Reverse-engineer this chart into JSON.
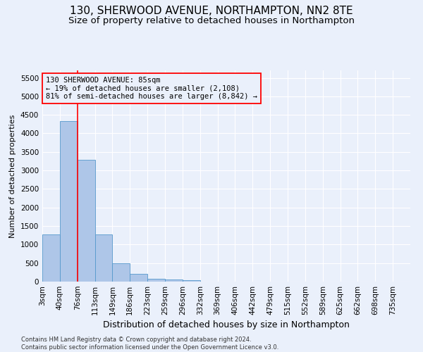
{
  "title1": "130, SHERWOOD AVENUE, NORTHAMPTON, NN2 8TE",
  "title2": "Size of property relative to detached houses in Northampton",
  "xlabel": "Distribution of detached houses by size in Northampton",
  "ylabel": "Number of detached properties",
  "footnote": "Contains HM Land Registry data © Crown copyright and database right 2024.\nContains public sector information licensed under the Open Government Licence v3.0.",
  "bin_labels": [
    "3sqm",
    "40sqm",
    "76sqm",
    "113sqm",
    "149sqm",
    "186sqm",
    "223sqm",
    "259sqm",
    "296sqm",
    "332sqm",
    "369sqm",
    "406sqm",
    "442sqm",
    "479sqm",
    "515sqm",
    "552sqm",
    "589sqm",
    "625sqm",
    "662sqm",
    "698sqm",
    "735sqm"
  ],
  "bar_heights": [
    1270,
    4330,
    3290,
    1280,
    490,
    215,
    85,
    55,
    45,
    0,
    0,
    0,
    0,
    0,
    0,
    0,
    0,
    0,
    0,
    0
  ],
  "bar_color": "#aec6e8",
  "bar_edge_color": "#5599cc",
  "vline_x": 2,
  "vline_color": "red",
  "annotation_text": "130 SHERWOOD AVENUE: 85sqm\n← 19% of detached houses are smaller (2,108)\n81% of semi-detached houses are larger (8,842) →",
  "ylim": [
    0,
    5700
  ],
  "yticks": [
    0,
    500,
    1000,
    1500,
    2000,
    2500,
    3000,
    3500,
    4000,
    4500,
    5000,
    5500
  ],
  "background_color": "#eaf0fb",
  "grid_color": "#ffffff",
  "title1_fontsize": 11,
  "title2_fontsize": 9.5,
  "xlabel_fontsize": 9,
  "ylabel_fontsize": 8,
  "tick_fontsize": 7.5,
  "annotation_fontsize": 7.5
}
